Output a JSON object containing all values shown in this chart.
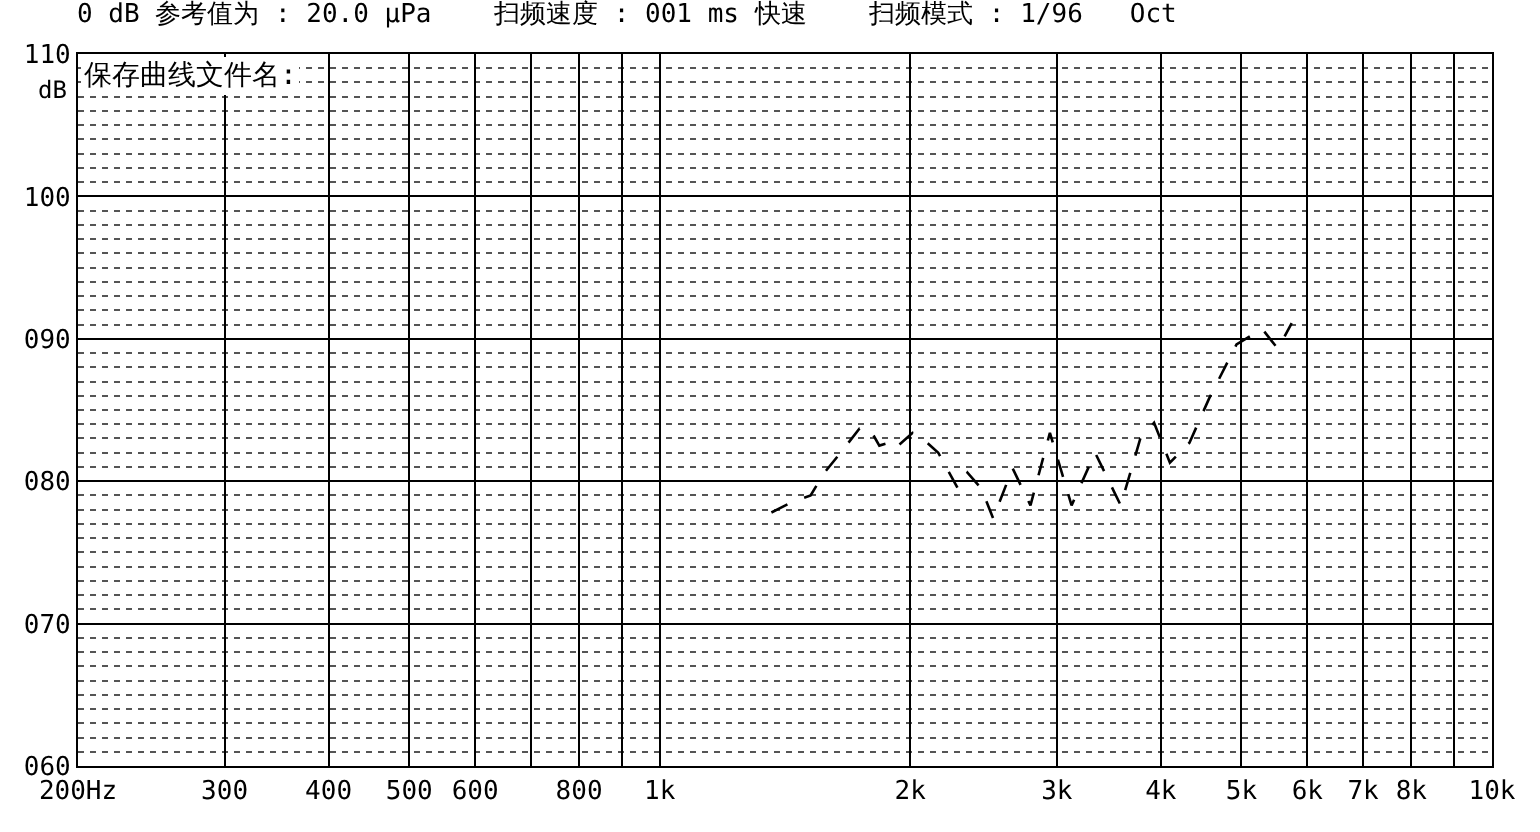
{
  "chart_data": {
    "type": "line",
    "title": "0 dB 参考值为 : 20.0 μPa    扫频速度 : 001 ms 快速    扫频模式 : 1/96   Oct",
    "ylabel": "dB",
    "annotations": [
      "保存曲线文件名:"
    ],
    "x": [
      1362,
      1437,
      1518,
      1577,
      1665,
      1738,
      1787,
      1836,
      1886,
      1917,
      2013,
      2068,
      2161,
      2281,
      2343,
      2434,
      2515,
      2655,
      2789,
      2943,
      3125,
      3335,
      3580,
      3780,
      3926,
      4102,
      4330,
      4571,
      4932,
      5294,
      5530,
      5746
    ],
    "series": [
      {
        "color": "#000000",
        "values": [
          77.8,
          78.5,
          79.0,
          80.6,
          82.3,
          83.7,
          83.7,
          82.5,
          82.7,
          82.3,
          83.4,
          83.0,
          82.0,
          79.5,
          80.6,
          79.5,
          77.4,
          80.9,
          78.3,
          83.4,
          78.3,
          82.0,
          78.3,
          83.0,
          84.1,
          81.3,
          82.7,
          85.8,
          89.6,
          90.7,
          89.3,
          91.1
        ]
      }
    ],
    "log": "x",
    "xlim": [
      200,
      10000
    ],
    "xticks": [
      {
        "value": 200,
        "label": "200Hz"
      },
      {
        "value": 300,
        "label": "300"
      },
      {
        "value": 400,
        "label": "400"
      },
      {
        "value": 500,
        "label": "500"
      },
      {
        "value": 600,
        "label": "600"
      },
      {
        "value": 700,
        "label": null
      },
      {
        "value": 800,
        "label": "800"
      },
      {
        "value": 900,
        "label": null
      },
      {
        "value": 1000,
        "label": "1k"
      },
      {
        "value": 2000,
        "label": "2k"
      },
      {
        "value": 3000,
        "label": "3k"
      },
      {
        "value": 4000,
        "label": "4k"
      },
      {
        "value": 5000,
        "label": "5k"
      },
      {
        "value": 6000,
        "label": "6k"
      },
      {
        "value": 7000,
        "label": "7k"
      },
      {
        "value": 8000,
        "label": "8k"
      },
      {
        "value": 9000,
        "label": null
      },
      {
        "value": 10000,
        "label": "10k"
      }
    ],
    "ylim": [
      60,
      110
    ],
    "yticks": [
      {
        "value": 60,
        "label": "060"
      },
      {
        "value": 70,
        "label": "070"
      },
      {
        "value": 80,
        "label": "080"
      },
      {
        "value": 90,
        "label": "090"
      },
      {
        "value": 100,
        "label": "100"
      },
      {
        "value": 110,
        "label": "110"
      }
    ],
    "grid": true,
    "legend": false,
    "marker": "none",
    "line_style": "dashed"
  }
}
